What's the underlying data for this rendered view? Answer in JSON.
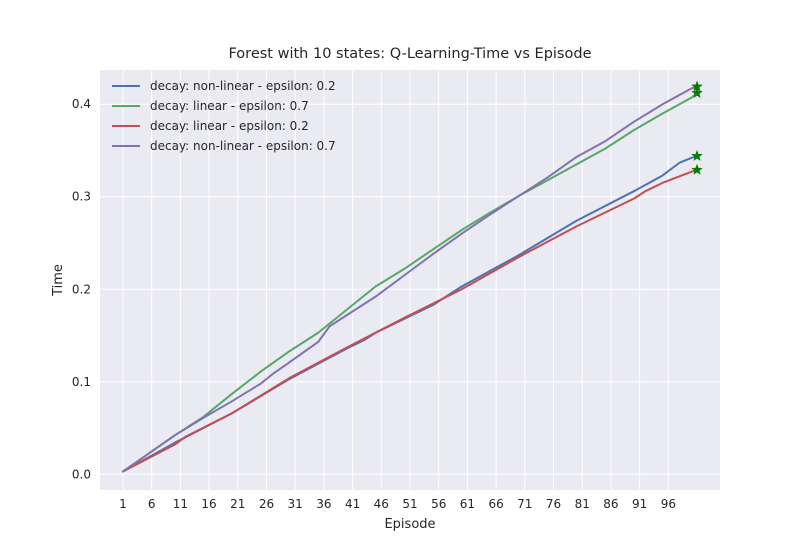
{
  "chart_data": {
    "type": "line",
    "title": "Forest with 10 states: Q-Learning-Time vs Episode",
    "xlabel": "Episode",
    "ylabel": "Time",
    "xlim": [
      -3,
      105
    ],
    "ylim": [
      -0.017,
      0.437
    ],
    "xticks": [
      1,
      6,
      11,
      16,
      21,
      26,
      31,
      36,
      41,
      46,
      51,
      56,
      61,
      66,
      71,
      76,
      81,
      86,
      91,
      96
    ],
    "yticks": [
      0.0,
      0.1,
      0.2,
      0.3,
      0.4
    ],
    "ytick_labels": [
      "0.0",
      "0.1",
      "0.2",
      "0.3",
      "0.4"
    ],
    "grid": true,
    "legend_position": "upper-left",
    "end_marker": "star",
    "end_marker_color": "#007f00",
    "background": "#eaeaf2",
    "series": [
      {
        "name": "decay: non-linear - epsilon: 0.2",
        "color": "#4c72b0",
        "points": [
          [
            1,
            0.003
          ],
          [
            10,
            0.034
          ],
          [
            20,
            0.066
          ],
          [
            30,
            0.103
          ],
          [
            40,
            0.136
          ],
          [
            43,
            0.145
          ],
          [
            45,
            0.153
          ],
          [
            50,
            0.168
          ],
          [
            55,
            0.183
          ],
          [
            60,
            0.203
          ],
          [
            70,
            0.237
          ],
          [
            80,
            0.274
          ],
          [
            90,
            0.306
          ],
          [
            95,
            0.323
          ],
          [
            98,
            0.337
          ],
          [
            100,
            0.342
          ],
          [
            101,
            0.344
          ]
        ]
      },
      {
        "name": "decay: linear - epsilon: 0.7",
        "color": "#55a868",
        "points": [
          [
            1,
            0.003
          ],
          [
            10,
            0.042
          ],
          [
            15,
            0.062
          ],
          [
            20,
            0.087
          ],
          [
            25,
            0.111
          ],
          [
            30,
            0.133
          ],
          [
            35,
            0.153
          ],
          [
            40,
            0.178
          ],
          [
            45,
            0.203
          ],
          [
            50,
            0.222
          ],
          [
            55,
            0.243
          ],
          [
            60,
            0.264
          ],
          [
            65,
            0.283
          ],
          [
            70,
            0.301
          ],
          [
            75,
            0.318
          ],
          [
            80,
            0.335
          ],
          [
            85,
            0.352
          ],
          [
            90,
            0.372
          ],
          [
            95,
            0.39
          ],
          [
            100,
            0.407
          ],
          [
            101,
            0.412
          ]
        ]
      },
      {
        "name": "decay: linear - epsilon: 0.2",
        "color": "#c44e52",
        "points": [
          [
            1,
            0.003
          ],
          [
            10,
            0.032
          ],
          [
            12,
            0.041
          ],
          [
            20,
            0.066
          ],
          [
            30,
            0.104
          ],
          [
            40,
            0.137
          ],
          [
            50,
            0.169
          ],
          [
            60,
            0.2
          ],
          [
            70,
            0.235
          ],
          [
            80,
            0.268
          ],
          [
            90,
            0.298
          ],
          [
            92,
            0.306
          ],
          [
            95,
            0.315
          ],
          [
            100,
            0.327
          ],
          [
            101,
            0.329
          ]
        ]
      },
      {
        "name": "decay: non-linear - epsilon: 0.7",
        "color": "#8172b2",
        "points": [
          [
            1,
            0.003
          ],
          [
            10,
            0.042
          ],
          [
            15,
            0.061
          ],
          [
            20,
            0.079
          ],
          [
            25,
            0.098
          ],
          [
            27,
            0.108
          ],
          [
            30,
            0.121
          ],
          [
            35,
            0.143
          ],
          [
            37,
            0.16
          ],
          [
            40,
            0.172
          ],
          [
            45,
            0.192
          ],
          [
            50,
            0.215
          ],
          [
            55,
            0.238
          ],
          [
            60,
            0.26
          ],
          [
            65,
            0.281
          ],
          [
            70,
            0.301
          ],
          [
            75,
            0.321
          ],
          [
            80,
            0.343
          ],
          [
            85,
            0.36
          ],
          [
            90,
            0.381
          ],
          [
            95,
            0.4
          ],
          [
            100,
            0.417
          ],
          [
            101,
            0.419
          ]
        ]
      }
    ]
  }
}
